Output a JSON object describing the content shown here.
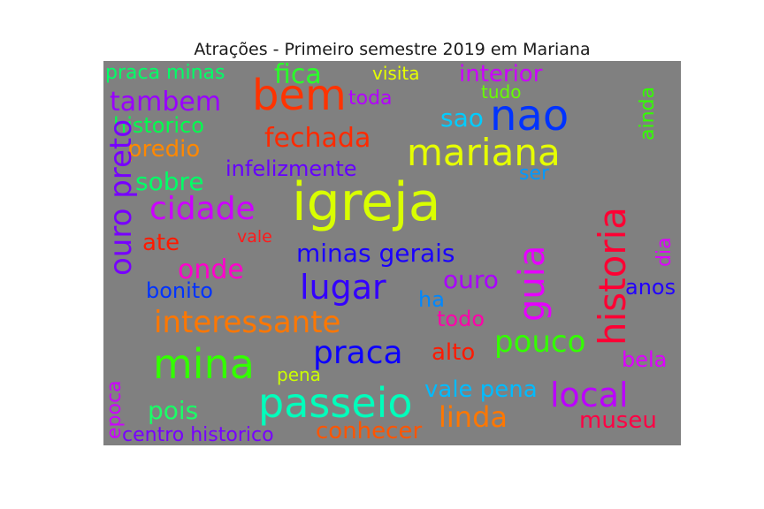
{
  "chart_data": {
    "type": "wordcloud",
    "title": "Atrações - Primeiro semestre 2019 em Mariana",
    "background": "#808080",
    "words": [
      {
        "text": "praca minas",
        "color": "#00ff66"
      },
      {
        "text": "fica",
        "color": "#2aff2a"
      },
      {
        "text": "visita",
        "color": "#e6ff00"
      },
      {
        "text": "interior",
        "color": "#cc00ff"
      },
      {
        "text": "bem",
        "color": "#ff3300"
      },
      {
        "text": "tudo",
        "color": "#66ff00"
      },
      {
        "text": "ainda",
        "color": "#33ff00"
      },
      {
        "text": "tambem",
        "color": "#9900ff"
      },
      {
        "text": "toda",
        "color": "#b300ff"
      },
      {
        "text": "nao",
        "color": "#0033ff"
      },
      {
        "text": "sao",
        "color": "#00ccff"
      },
      {
        "text": "historico",
        "color": "#00ff4d"
      },
      {
        "text": "fechada",
        "color": "#ff2a00"
      },
      {
        "text": "predio",
        "color": "#ff8800"
      },
      {
        "text": "mariana",
        "color": "#e6ff00"
      },
      {
        "text": "historia",
        "color": "#ff0033"
      },
      {
        "text": "infelizmente",
        "color": "#6600ff"
      },
      {
        "text": "ser",
        "color": "#0099ff"
      },
      {
        "text": "sobre",
        "color": "#00ff66"
      },
      {
        "text": "ouro preto",
        "color": "#7700ff"
      },
      {
        "text": "igreja",
        "color": "#d9ff00"
      },
      {
        "text": "cidade",
        "color": "#cc00ff"
      },
      {
        "text": "guia",
        "color": "#e600ff"
      },
      {
        "text": "dia",
        "color": "#dd00ff"
      },
      {
        "text": "ate",
        "color": "#ff1a00"
      },
      {
        "text": "vale",
        "color": "#ff1a1a"
      },
      {
        "text": "onde",
        "color": "#ff00cc"
      },
      {
        "text": "minas gerais",
        "color": "#1a00ff"
      },
      {
        "text": "bonito",
        "color": "#0033ff"
      },
      {
        "text": "lugar",
        "color": "#3300ff"
      },
      {
        "text": "ouro",
        "color": "#aa00ff"
      },
      {
        "text": "anos",
        "color": "#2200ff"
      },
      {
        "text": "ha",
        "color": "#0088ff"
      },
      {
        "text": "interessante",
        "color": "#ff7700"
      },
      {
        "text": "todo",
        "color": "#ff00aa"
      },
      {
        "text": "pouco",
        "color": "#33ff00"
      },
      {
        "text": "mina",
        "color": "#33ff00"
      },
      {
        "text": "praca",
        "color": "#0d00ff"
      },
      {
        "text": "alto",
        "color": "#ff1a00"
      },
      {
        "text": "bela",
        "color": "#dd00ff"
      },
      {
        "text": "pena",
        "color": "#ccff00"
      },
      {
        "text": "epoca",
        "color": "#cc00ff"
      },
      {
        "text": "vale pena",
        "color": "#00bbff"
      },
      {
        "text": "local",
        "color": "#bb00ff"
      },
      {
        "text": "pois",
        "color": "#1aff66"
      },
      {
        "text": "passeio",
        "color": "#00ffbb"
      },
      {
        "text": "linda",
        "color": "#ff7700"
      },
      {
        "text": "museu",
        "color": "#ff0044"
      },
      {
        "text": "centro historico",
        "color": "#7700ff"
      },
      {
        "text": "conhecer",
        "color": "#ff5500"
      }
    ]
  }
}
